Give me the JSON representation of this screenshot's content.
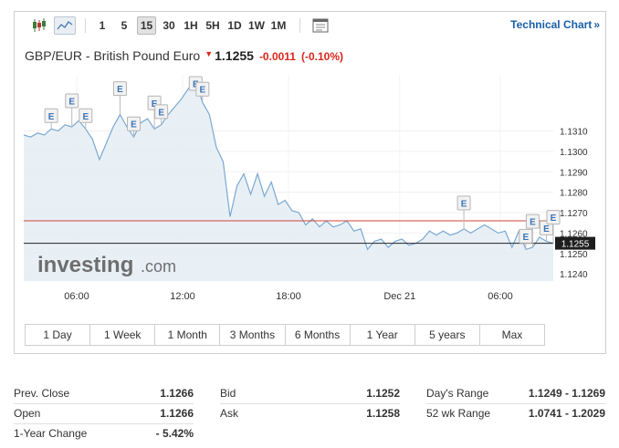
{
  "toolbar": {
    "timeframes": [
      "1",
      "5",
      "15",
      "30",
      "1H",
      "5H",
      "1D",
      "1W",
      "1M"
    ],
    "active_timeframe": "15",
    "technical_chart_label": "Technical Chart",
    "technical_chart_chevron": "»"
  },
  "header": {
    "title": "GBP/EUR - British Pound Euro",
    "direction": "down",
    "last": "1.1255",
    "change": "-0.0011",
    "change_pct": "(-0.10%)"
  },
  "colors": {
    "down": "#d9261c",
    "line": "#7ba9d3",
    "area": "#e4edf5",
    "prev_close_line": "#d0443a",
    "last_line": "#222222",
    "link": "#1a5fa8"
  },
  "chart_data": {
    "type": "area",
    "title": "",
    "xlabel": "",
    "ylabel": "",
    "x_ticks": [
      "06:00",
      "12:00",
      "18:00",
      "Dec 21",
      "06:00"
    ],
    "y_ticks": [
      "1.1310",
      "1.1300",
      "1.1290",
      "1.1280",
      "1.1270",
      "1.1260",
      "1.1250",
      "1.1240"
    ],
    "ylim": [
      1.12365,
      1.13375
    ],
    "grid": true,
    "prev_close": 1.1266,
    "last_value": 1.1255,
    "last_label": "1.1255",
    "event_marker": "E",
    "events": [
      4,
      7,
      9,
      14,
      16,
      19,
      20,
      25,
      26,
      64,
      73,
      74,
      76,
      77
    ],
    "series": [
      {
        "values": [
          1.1308,
          1.1307,
          1.1309,
          1.1308,
          1.1311,
          1.131,
          1.1313,
          1.1312,
          1.1315,
          1.1311,
          1.1306,
          1.1296,
          1.1304,
          1.1312,
          1.1318,
          1.1312,
          1.1307,
          1.1314,
          1.1316,
          1.1311,
          1.1313,
          1.1318,
          1.1322,
          1.1326,
          1.1331,
          1.1335,
          1.1324,
          1.1318,
          1.1302,
          1.1295,
          1.1268,
          1.1283,
          1.1289,
          1.1279,
          1.1289,
          1.1278,
          1.1285,
          1.1274,
          1.1276,
          1.1271,
          1.127,
          1.1264,
          1.1267,
          1.1263,
          1.1266,
          1.1263,
          1.1264,
          1.1266,
          1.1261,
          1.1262,
          1.1252,
          1.1256,
          1.1257,
          1.1253,
          1.1256,
          1.1257,
          1.1254,
          1.1255,
          1.1257,
          1.1261,
          1.1259,
          1.1261,
          1.1259,
          1.126,
          1.1262,
          1.126,
          1.1262,
          1.1264,
          1.1262,
          1.126,
          1.1261,
          1.1253,
          1.1261,
          1.1252,
          1.1253,
          1.1258,
          1.1256,
          1.1255
        ]
      }
    ]
  },
  "ranges": [
    "1 Day",
    "1 Week",
    "1 Month",
    "3 Months",
    "6 Months",
    "1 Year",
    "5 years",
    "Max"
  ],
  "watermark": {
    "brand": "investing",
    "suffix": ".com"
  },
  "stats": {
    "prev_close": {
      "label": "Prev. Close",
      "value": "1.1266"
    },
    "open": {
      "label": "Open",
      "value": "1.1266"
    },
    "year_change": {
      "label": "1-Year Change",
      "value": "- 5.42%"
    },
    "bid": {
      "label": "Bid",
      "value": "1.1252"
    },
    "ask": {
      "label": "Ask",
      "value": "1.1258"
    },
    "days_range": {
      "label": "Day's Range",
      "value": "1.1249 - 1.1269"
    },
    "wk52_range": {
      "label": "52 wk Range",
      "value": "1.0741 - 1.2029"
    }
  }
}
